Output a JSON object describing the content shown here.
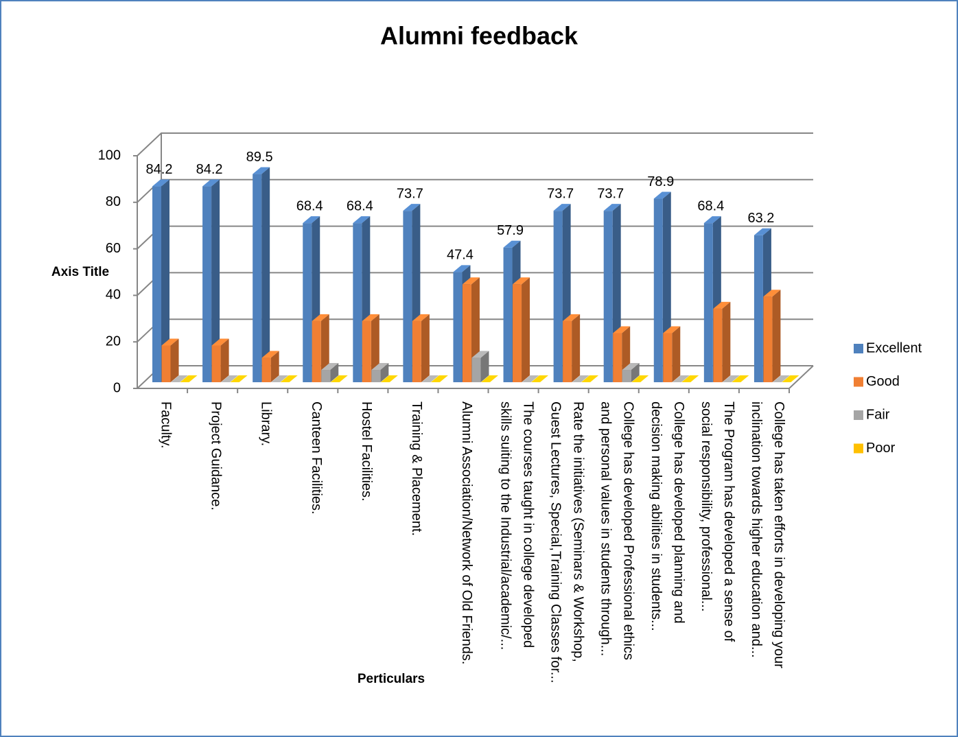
{
  "chart_data": {
    "type": "bar3d",
    "title": "Alumni feedback",
    "y_axis_label": "Axis Title",
    "x_axis_label": "Perticulars",
    "categories": [
      "Faculty.",
      "Project Guidance.",
      "Library.",
      "Canteen Facilities.",
      "Hostel Facilities.",
      "Training & Placement.",
      "Alumni Association/Network of Old Friends.",
      "The courses taught in college developed\nskills suiting to the Industrial/academic/...",
      "Rate the initiatives (Seminars & Workshop,\nGuest Lectures, Special,Training Classes for...",
      "College has developed Professional ethics\nand personal values in students through...",
      "College has developed planning and\ndecision making abilities in students...",
      "The Program has developed a sense of\nsocial responsibility, professional...",
      "College has taken efforts in developing your\ninclination towards higher education and..."
    ],
    "series": [
      {
        "name": "Excellent",
        "color": "#4f81bd",
        "values": [
          84.2,
          84.2,
          89.5,
          68.4,
          68.4,
          73.7,
          47.4,
          57.9,
          73.7,
          73.7,
          78.9,
          68.4,
          63.2
        ]
      },
      {
        "name": "Good",
        "color": "#f07f33",
        "values": [
          15.8,
          15.8,
          10.5,
          26.3,
          26.3,
          26.3,
          42.1,
          42.1,
          26.3,
          21.1,
          21.1,
          31.6,
          36.8
        ]
      },
      {
        "name": "Fair",
        "color": "#a5a5a5",
        "values": [
          0,
          0,
          0,
          5.3,
          5.3,
          0,
          10.5,
          0,
          0,
          5.3,
          0,
          0,
          0
        ]
      },
      {
        "name": "Poor",
        "color": "#ffc000",
        "values": [
          0,
          0,
          0,
          0,
          0,
          0,
          0,
          0,
          0,
          0,
          0,
          0,
          0
        ]
      }
    ],
    "data_labels_series": "Excellent",
    "ylim": [
      0,
      100
    ],
    "yticks": [
      0,
      20,
      40,
      60,
      80,
      100
    ],
    "grid": true,
    "legend": "right"
  }
}
